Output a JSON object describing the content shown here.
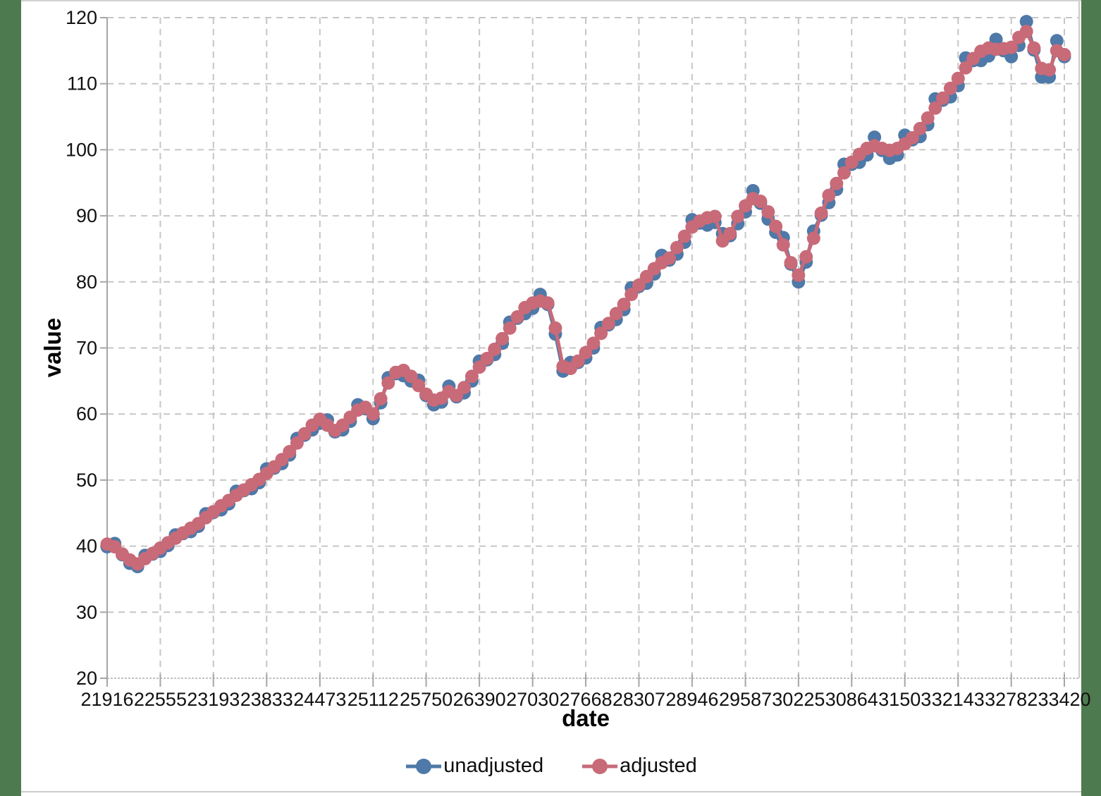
{
  "frame": {
    "background_band_color": "#4e7a50",
    "canvas_color": "#ffffff"
  },
  "chart_data": {
    "type": "line",
    "title": "",
    "xlabel": "date",
    "ylabel": "value",
    "xlim": [
      21916,
      33420
    ],
    "ylim": [
      20,
      120
    ],
    "grid": "dashed-gray",
    "legend_position": "bottom-center",
    "x_tick_labels": [
      21916,
      22555,
      23193,
      23833,
      24473,
      25112,
      25750,
      26390,
      27030,
      27668,
      28307,
      28946,
      29587,
      30225,
      30864,
      31503,
      32143,
      32782,
      33420
    ],
    "y_tick_labels": [
      20,
      30,
      40,
      50,
      60,
      70,
      80,
      90,
      100,
      110,
      120
    ],
    "x": [
      21916,
      22007,
      22098,
      22190,
      22282,
      22372,
      22463,
      22555,
      22647,
      22737,
      22828,
      22920,
      23012,
      23102,
      23193,
      23285,
      23377,
      23468,
      23559,
      23651,
      23743,
      23833,
      23924,
      24016,
      24108,
      24198,
      24289,
      24381,
      24473,
      24563,
      24654,
      24746,
      24838,
      24929,
      25020,
      25112,
      25204,
      25294,
      25385,
      25477,
      25569,
      25659,
      25750,
      25842,
      25934,
      26024,
      26115,
      26207,
      26299,
      26390,
      26481,
      26573,
      26665,
      26755,
      26846,
      26938,
      27030,
      27120,
      27211,
      27303,
      27395,
      27485,
      27576,
      27668,
      27760,
      27851,
      27942,
      28034,
      28126,
      28216,
      28307,
      28399,
      28491,
      28581,
      28672,
      28764,
      28856,
      28946,
      29037,
      29129,
      29221,
      29312,
      29403,
      29495,
      29587,
      29677,
      29768,
      29860,
      29952,
      30042,
      30133,
      30225,
      30317,
      30407,
      30498,
      30590,
      30682,
      30773,
      30864,
      30956,
      31048,
      31138,
      31229,
      31321,
      31413,
      31503,
      31594,
      31686,
      31778,
      31868,
      31959,
      32051,
      32143,
      32234,
      32325,
      32417,
      32509,
      32599,
      32690,
      32782,
      32874,
      32964,
      33055,
      33147,
      33239,
      33329,
      33420
    ],
    "series": [
      {
        "name": "unadjusted",
        "color": "#4e79a8",
        "values": [
          39.9,
          40.4,
          38.7,
          37.4,
          36.9,
          38.6,
          38.8,
          39.2,
          40.1,
          41.7,
          41.9,
          42.2,
          43.0,
          44.9,
          45.1,
          45.5,
          46.4,
          48.3,
          48.4,
          48.7,
          49.6,
          51.7,
          51.8,
          52.5,
          53.8,
          56.3,
          56.8,
          57.6,
          58.6,
          59.1,
          57.3,
          57.6,
          58.9,
          61.4,
          60.8,
          59.3,
          61.7,
          65.5,
          66.1,
          65.8,
          65.0,
          65.1,
          62.8,
          61.4,
          61.8,
          64.2,
          62.6,
          63.2,
          65.0,
          68.0,
          68.2,
          69.0,
          70.7,
          73.9,
          74.5,
          75.2,
          76.0,
          78.1,
          76.6,
          72.1,
          66.5,
          67.8,
          67.8,
          68.5,
          70.0,
          73.1,
          73.5,
          74.3,
          75.8,
          79.1,
          79.3,
          79.8,
          81.2,
          84.0,
          83.3,
          84.2,
          86.0,
          89.4,
          88.9,
          88.6,
          89.0,
          87.3,
          87.0,
          88.8,
          90.6,
          93.8,
          91.9,
          89.5,
          87.5,
          86.7,
          82.7,
          80.0,
          83.0,
          87.7,
          90.1,
          92.0,
          94.0,
          97.8,
          97.8,
          98.1,
          99.2,
          101.9,
          99.9,
          98.7,
          99.2,
          102.2,
          101.5,
          102.0,
          103.8,
          107.7,
          107.5,
          108.0,
          109.7,
          113.9,
          113.5,
          113.5,
          114.2,
          116.7,
          115.0,
          114.1,
          115.8,
          119.4,
          115.1,
          111.0,
          111.0,
          116.5,
          114.1
        ]
      },
      {
        "name": "adjusted",
        "color": "#c86a78",
        "values": [
          40.3,
          39.9,
          38.8,
          37.9,
          37.3,
          38.1,
          38.9,
          39.7,
          40.5,
          41.2,
          42.0,
          42.7,
          43.4,
          44.3,
          45.2,
          46.1,
          46.9,
          47.7,
          48.5,
          49.3,
          50.1,
          51.0,
          52.0,
          53.1,
          54.3,
          55.6,
          57.0,
          58.3,
          59.2,
          58.3,
          57.5,
          58.3,
          59.5,
          60.6,
          61.0,
          60.0,
          62.3,
          64.7,
          66.3,
          66.6,
          65.7,
          64.3,
          63.0,
          62.1,
          62.4,
          63.4,
          62.8,
          64.0,
          65.7,
          67.1,
          68.4,
          69.8,
          71.4,
          73.0,
          74.7,
          76.1,
          76.8,
          77.1,
          76.8,
          73.0,
          67.2,
          66.9,
          68.0,
          69.3,
          70.7,
          72.2,
          73.7,
          75.2,
          76.6,
          78.1,
          79.5,
          80.8,
          82.0,
          82.9,
          83.6,
          85.2,
          86.9,
          88.3,
          89.2,
          89.7,
          89.9,
          86.2,
          87.3,
          89.9,
          91.5,
          92.6,
          92.2,
          90.6,
          88.4,
          85.6,
          82.9,
          81.0,
          83.8,
          86.6,
          90.4,
          93.1,
          94.9,
          96.5,
          98.1,
          99.3,
          100.2,
          100.6,
          100.2,
          99.9,
          100.2,
          100.9,
          101.8,
          103.2,
          104.8,
          106.3,
          107.8,
          109.3,
          110.8,
          112.4,
          113.8,
          114.9,
          115.4,
          115.2,
          115.3,
          115.5,
          117.0,
          117.9,
          115.4,
          112.3,
          112.1,
          115.0,
          114.4
        ]
      }
    ]
  },
  "legend": {
    "items": [
      {
        "label": "unadjusted",
        "color": "#4e79a8"
      },
      {
        "label": "adjusted",
        "color": "#c86a78"
      }
    ]
  },
  "axes": {
    "x_title": "date",
    "y_title": "value",
    "grid_color": "#c6c6c6",
    "axis_color": "#a6a6a6",
    "tick_label_color": "#111111"
  }
}
